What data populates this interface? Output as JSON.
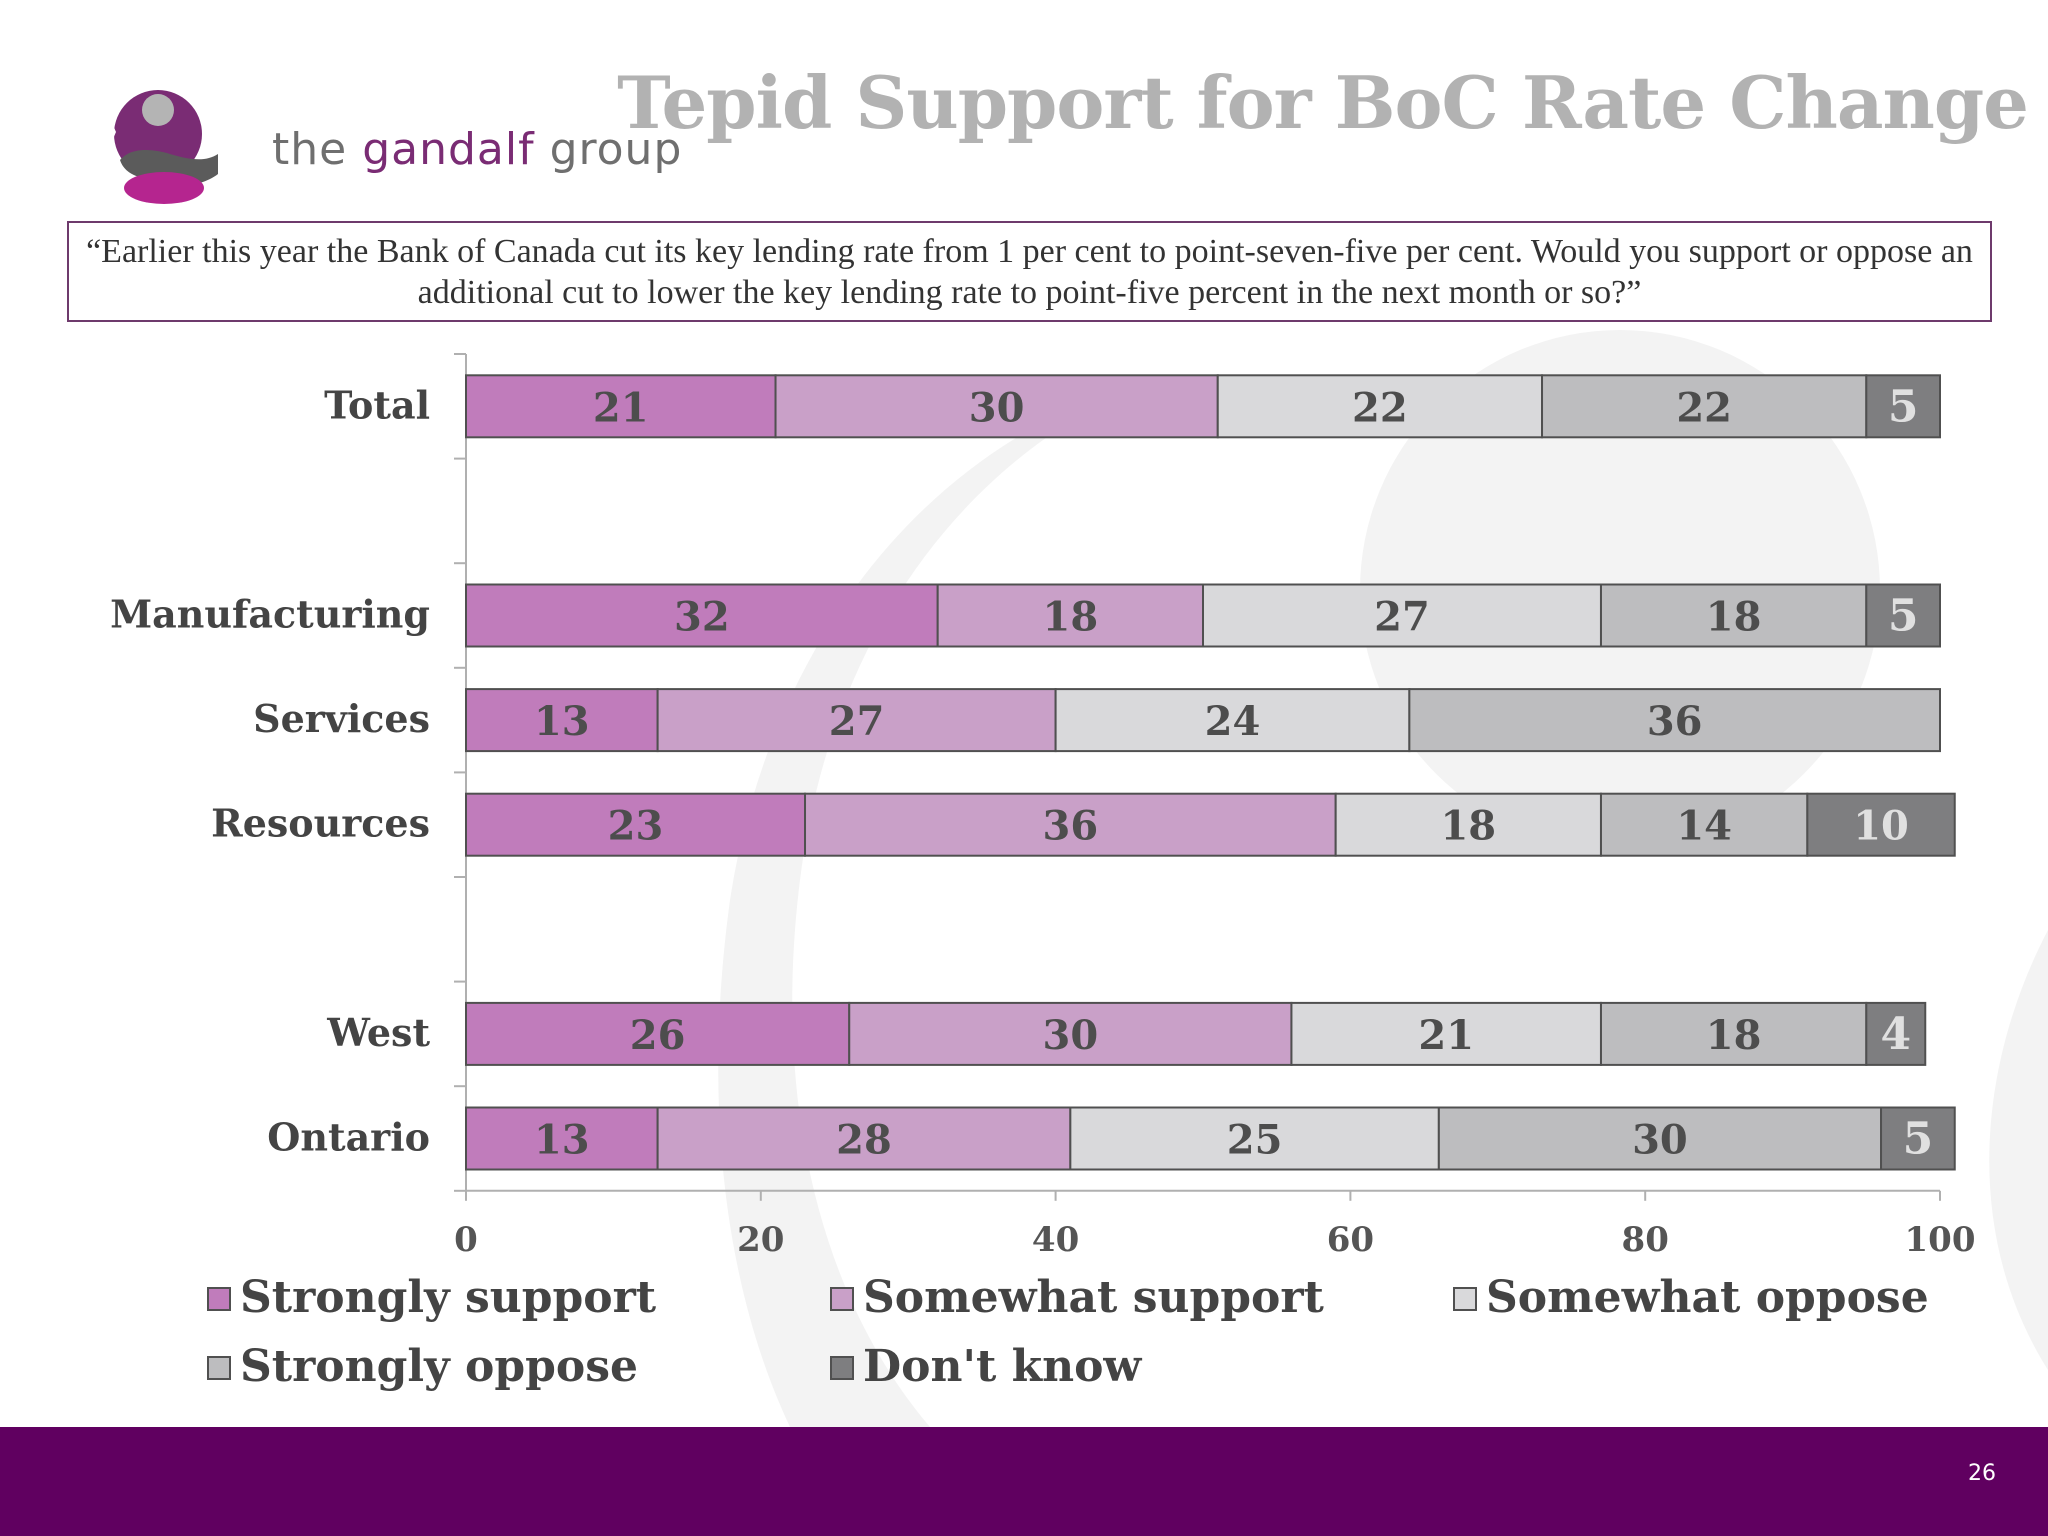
{
  "slide": {
    "title": "Tepid Support for BoC Rate Change",
    "brand_left": "the ",
    "brand_mid": "gandalf",
    "brand_right": " group",
    "question": "“Earlier this year the Bank of Canada cut its key lending rate from 1 per cent to point-seven-five per cent. Would you support or oppose an additional cut to lower the key lending rate to point-five percent in the next month or so?”",
    "page_number": "26",
    "colors": {
      "footer": "#600060",
      "title": "#b2b2b2",
      "frame": "#6e3a6c"
    }
  },
  "chart_data": {
    "type": "bar",
    "orientation": "horizontal",
    "stacked": true,
    "categories": [
      "Total",
      "",
      "Manufacturing",
      "Services",
      "Resources",
      "",
      "West",
      "Ontario"
    ],
    "xlim": [
      0,
      100
    ],
    "xticks": [
      0,
      20,
      40,
      60,
      80,
      100
    ],
    "xlabel": "",
    "ylabel": "",
    "grid": false,
    "legend": "bottom",
    "series": [
      {
        "name": "Strongly support",
        "color": "#c07cbb",
        "label_color": "#4d4d4d",
        "values": [
          21,
          null,
          32,
          13,
          23,
          null,
          26,
          13
        ]
      },
      {
        "name": "Somewhat support",
        "color": "#c9a0c8",
        "label_color": "#4d4d4d",
        "values": [
          30,
          null,
          18,
          27,
          36,
          null,
          30,
          28
        ]
      },
      {
        "name": "Somewhat oppose",
        "color": "#d9d9db",
        "label_color": "#4d4d4d",
        "values": [
          22,
          null,
          27,
          24,
          18,
          null,
          21,
          25
        ]
      },
      {
        "name": "Strongly oppose",
        "color": "#bdbdbf",
        "label_color": "#4d4d4d",
        "values": [
          22,
          null,
          18,
          36,
          14,
          null,
          18,
          30
        ]
      },
      {
        "name": "Don't know",
        "color": "#7e7e80",
        "label_color": "#e0e0e0",
        "values": [
          5,
          null,
          5,
          null,
          10,
          null,
          4,
          5
        ]
      }
    ]
  }
}
